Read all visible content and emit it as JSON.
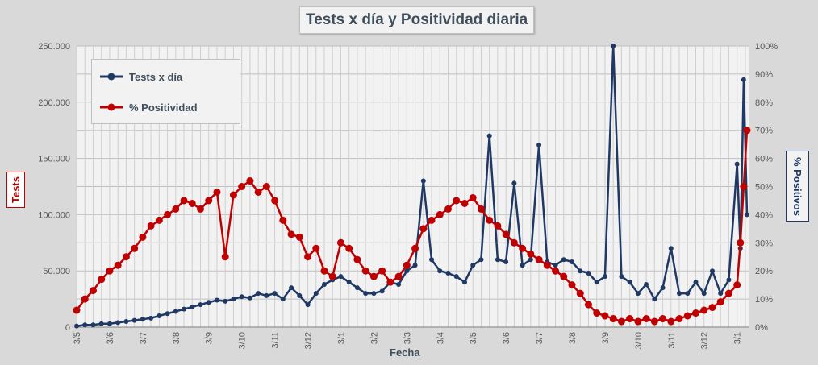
{
  "chart_data": {
    "type": "line",
    "title": "Tests x día y Positividad diaria",
    "xlabel": "Fecha",
    "ylabel_left": "Tests",
    "ylabel_right": "% Positivos",
    "y_left_ticks": [
      "0",
      "50.000",
      "100.000",
      "150.000",
      "200.000",
      "250.000"
    ],
    "y_right_ticks": [
      "0%",
      "10%",
      "20%",
      "30%",
      "40%",
      "50%",
      "60%",
      "70%",
      "80%",
      "90%",
      "100%"
    ],
    "ylim_left": [
      0,
      250000
    ],
    "ylim_right": [
      0,
      100
    ],
    "x_tick_labels": [
      "3/5",
      "3/6",
      "3/7",
      "3/8",
      "3/9",
      "3/10",
      "3/11",
      "3/12",
      "3/1",
      "3/2",
      "3/3",
      "3/4",
      "3/5",
      "3/6",
      "3/7",
      "3/8",
      "3/9",
      "3/10",
      "3/11",
      "3/12",
      "3/1"
    ],
    "grid": true,
    "legend_position": "top-left",
    "colors": {
      "tests": "#1f3864",
      "positividad": "#c00000"
    },
    "series": [
      {
        "name": "Tests x día",
        "axis": "left",
        "x": [
          0,
          0.25,
          0.5,
          0.75,
          1,
          1.25,
          1.5,
          1.75,
          2,
          2.25,
          2.5,
          2.75,
          3,
          3.25,
          3.5,
          3.75,
          4,
          4.25,
          4.5,
          4.75,
          5,
          5.25,
          5.5,
          5.75,
          6,
          6.25,
          6.5,
          6.75,
          7,
          7.25,
          7.5,
          7.75,
          8,
          8.25,
          8.5,
          8.75,
          9,
          9.25,
          9.5,
          9.75,
          10,
          10.25,
          10.5,
          10.75,
          11,
          11.25,
          11.5,
          11.75,
          12,
          12.25,
          12.5,
          12.75,
          13,
          13.25,
          13.5,
          13.75,
          14,
          14.25,
          14.5,
          14.75,
          15,
          15.25,
          15.5,
          15.75,
          16,
          16.25,
          16.5,
          16.75,
          17,
          17.25,
          17.5,
          17.75,
          18,
          18.25,
          18.5,
          18.75,
          19,
          19.25,
          19.5,
          19.75,
          20,
          20.1,
          20.2,
          20.3
        ],
        "values": [
          1000,
          2000,
          2000,
          3000,
          3000,
          4000,
          5000,
          6000,
          7000,
          8000,
          10000,
          12000,
          14000,
          16000,
          18000,
          20000,
          22000,
          24000,
          23000,
          25000,
          27000,
          26000,
          30000,
          28000,
          30000,
          25000,
          35000,
          28000,
          20000,
          30000,
          38000,
          42000,
          45000,
          40000,
          35000,
          30000,
          30000,
          32000,
          40000,
          38000,
          50000,
          55000,
          130000,
          60000,
          50000,
          48000,
          45000,
          40000,
          55000,
          60000,
          170000,
          60000,
          58000,
          128000,
          55000,
          60000,
          162000,
          58000,
          55000,
          60000,
          58000,
          50000,
          48000,
          40000,
          45000,
          250000,
          45000,
          40000,
          30000,
          38000,
          25000,
          35000,
          70000,
          30000,
          30000,
          40000,
          30000,
          50000,
          30000,
          42000,
          145000,
          70000,
          220000,
          100000
        ]
      },
      {
        "name": "% Positividad",
        "axis": "right",
        "x": [
          0,
          0.25,
          0.5,
          0.75,
          1,
          1.25,
          1.5,
          1.75,
          2,
          2.25,
          2.5,
          2.75,
          3,
          3.25,
          3.5,
          3.75,
          4,
          4.25,
          4.5,
          4.75,
          5,
          5.25,
          5.5,
          5.75,
          6,
          6.25,
          6.5,
          6.75,
          7,
          7.25,
          7.5,
          7.75,
          8,
          8.25,
          8.5,
          8.75,
          9,
          9.25,
          9.5,
          9.75,
          10,
          10.25,
          10.5,
          10.75,
          11,
          11.25,
          11.5,
          11.75,
          12,
          12.25,
          12.5,
          12.75,
          13,
          13.25,
          13.5,
          13.75,
          14,
          14.25,
          14.5,
          14.75,
          15,
          15.25,
          15.5,
          15.75,
          16,
          16.25,
          16.5,
          16.75,
          17,
          17.25,
          17.5,
          17.75,
          18,
          18.25,
          18.5,
          18.75,
          19,
          19.25,
          19.5,
          19.75,
          20,
          20.1,
          20.2,
          20.3
        ],
        "values": [
          6,
          10,
          13,
          17,
          20,
          22,
          25,
          28,
          32,
          36,
          38,
          40,
          42,
          45,
          44,
          42,
          45,
          48,
          25,
          47,
          50,
          52,
          48,
          50,
          45,
          38,
          33,
          32,
          25,
          28,
          20,
          18,
          30,
          28,
          24,
          20,
          18,
          20,
          16,
          18,
          22,
          28,
          35,
          38,
          40,
          42,
          45,
          44,
          46,
          42,
          38,
          36,
          33,
          30,
          28,
          26,
          24,
          22,
          20,
          18,
          15,
          12,
          8,
          5,
          4,
          3,
          2,
          3,
          2,
          3,
          2,
          3,
          2,
          3,
          4,
          5,
          6,
          7,
          9,
          12,
          15,
          30,
          50,
          70
        ]
      }
    ]
  }
}
